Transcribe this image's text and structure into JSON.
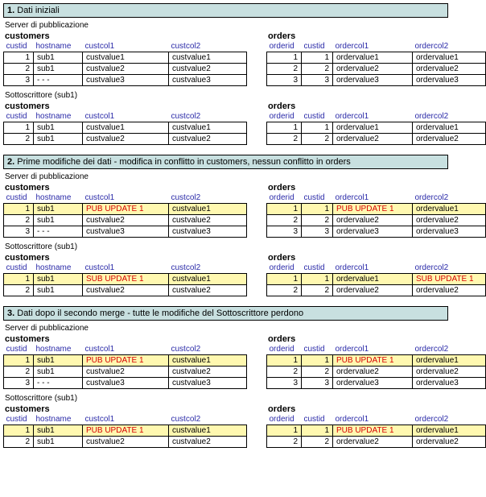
{
  "sections": [
    {
      "num": "1.",
      "title": "Dati iniziali"
    },
    {
      "num": "2.",
      "title": "Prime modifiche dei dati - modifica in conflitto in customers, nessun conflitto in orders"
    },
    {
      "num": "3.",
      "title": "Dati dopo il secondo merge - tutte le modifiche del Sottoscrittore perdono"
    }
  ],
  "labels": {
    "publisher": "Server di pubblicazione",
    "subscriber": "Sottoscrittore (sub1)",
    "customers": "customers",
    "orders": "orders"
  },
  "cols": {
    "customers": [
      "custid",
      "hostname",
      "custcol1",
      "custcol2"
    ],
    "orders": [
      "orderid",
      "custid",
      "ordercol1",
      "ordercol2"
    ]
  },
  "w": {
    "customers": [
      28,
      52,
      98,
      88
    ],
    "orders": [
      34,
      30,
      90,
      82
    ]
  },
  "s1": {
    "pub_c": [
      [
        "1",
        "sub1",
        "custvalue1",
        "custvalue1"
      ],
      [
        "2",
        "sub1",
        "custvalue2",
        "custvalue2"
      ],
      [
        "3",
        "- - -",
        "custvalue3",
        "custvalue3"
      ]
    ],
    "pub_o": [
      [
        "1",
        "1",
        "ordervalue1",
        "ordervalue1"
      ],
      [
        "2",
        "2",
        "ordervalue2",
        "ordervalue2"
      ],
      [
        "3",
        "3",
        "ordervalue3",
        "ordervalue3"
      ]
    ],
    "sub_c": [
      [
        "1",
        "sub1",
        "custvalue1",
        "custvalue1"
      ],
      [
        "2",
        "sub1",
        "custvalue2",
        "custvalue2"
      ]
    ],
    "sub_o": [
      [
        "1",
        "1",
        "ordervalue1",
        "ordervalue1"
      ],
      [
        "2",
        "2",
        "ordervalue2",
        "ordervalue2"
      ]
    ]
  },
  "s2": {
    "pub_c": [
      {
        "r": [
          "1",
          "sub1",
          "PUB UPDATE 1",
          "custvalue1"
        ],
        "hl": true,
        "red": [
          2
        ]
      },
      {
        "r": [
          "2",
          "sub1",
          "custvalue2",
          "custvalue2"
        ]
      },
      {
        "r": [
          "3",
          "- - -",
          "custvalue3",
          "custvalue3"
        ]
      }
    ],
    "pub_o": [
      {
        "r": [
          "1",
          "1",
          "PUB UPDATE 1",
          "ordervalue1"
        ],
        "hl": true,
        "red": [
          2
        ]
      },
      {
        "r": [
          "2",
          "2",
          "ordervalue2",
          "ordervalue2"
        ]
      },
      {
        "r": [
          "3",
          "3",
          "ordervalue3",
          "ordervalue3"
        ]
      }
    ],
    "sub_c": [
      {
        "r": [
          "1",
          "sub1",
          "SUB UPDATE 1",
          "custvalue1"
        ],
        "hl": true,
        "red": [
          2
        ]
      },
      {
        "r": [
          "2",
          "sub1",
          "custvalue2",
          "custvalue2"
        ]
      }
    ],
    "sub_o": [
      {
        "r": [
          "1",
          "1",
          "ordervalue1",
          "SUB UPDATE 1"
        ],
        "hl": true,
        "red": [
          3
        ]
      },
      {
        "r": [
          "2",
          "2",
          "ordervalue2",
          "ordervalue2"
        ]
      }
    ]
  },
  "s3": {
    "pub_c": [
      {
        "r": [
          "1",
          "sub1",
          "PUB UPDATE 1",
          "custvalue1"
        ],
        "hl": true,
        "red": [
          2
        ]
      },
      {
        "r": [
          "2",
          "sub1",
          "custvalue2",
          "custvalue2"
        ]
      },
      {
        "r": [
          "3",
          "- - -",
          "custvalue3",
          "custvalue3"
        ]
      }
    ],
    "pub_o": [
      {
        "r": [
          "1",
          "1",
          "PUB UPDATE 1",
          "ordervalue1"
        ],
        "hl": true,
        "red": [
          2
        ]
      },
      {
        "r": [
          "2",
          "2",
          "ordervalue2",
          "ordervalue2"
        ]
      },
      {
        "r": [
          "3",
          "3",
          "ordervalue3",
          "ordervalue3"
        ]
      }
    ],
    "sub_c": [
      {
        "r": [
          "1",
          "sub1",
          "PUB UPDATE 1",
          "custvalue1"
        ],
        "hl": true,
        "red": [
          2
        ]
      },
      {
        "r": [
          "2",
          "sub1",
          "custvalue2",
          "custvalue2"
        ]
      }
    ],
    "sub_o": [
      {
        "r": [
          "1",
          "1",
          "PUB UPDATE 1",
          "ordervalue1"
        ],
        "hl": true,
        "red": [
          2
        ]
      },
      {
        "r": [
          "2",
          "2",
          "ordervalue2",
          "ordervalue2"
        ]
      }
    ]
  }
}
